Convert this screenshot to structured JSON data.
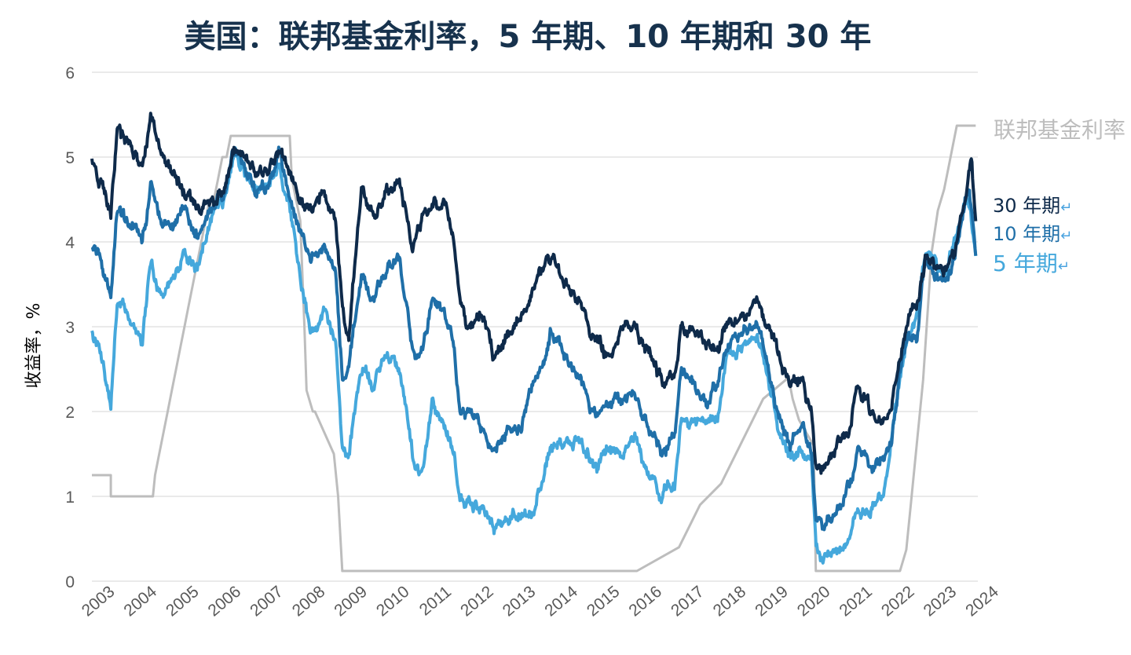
{
  "chart_data": {
    "type": "line",
    "title": "美国：联邦基金利率，5 年期、10 年期和 30 年",
    "ylabel": "收益率，%",
    "xlabel": "",
    "ylim": [
      0,
      6
    ],
    "yticks": [
      "0",
      "1",
      "2",
      "3",
      "4",
      "5",
      "6"
    ],
    "xticks": [
      "2003",
      "2004",
      "2005",
      "2006",
      "2007",
      "2008",
      "2009",
      "2010",
      "2011",
      "2012",
      "2013",
      "2014",
      "2015",
      "2016",
      "2017",
      "2018",
      "2019",
      "2020",
      "2021",
      "2022",
      "2023",
      "2024"
    ],
    "grid": true,
    "legend_placement": "right, at line ends",
    "colors": {
      "title": "#17324d",
      "fed": "#bdbdbd",
      "y30": "#0e2a4a",
      "y10": "#1f6fa8",
      "y5": "#45a8dc",
      "axis_text": "#595959",
      "return_mark": "#4aa3df"
    },
    "series": [
      {
        "name": "联邦基金利率",
        "x": [
          2003.0,
          2003.45,
          2003.45,
          2004.45,
          2004.5,
          2004.6,
          2004.7,
          2004.8,
          2004.9,
          2005.0,
          2005.1,
          2005.2,
          2005.3,
          2005.4,
          2005.5,
          2005.6,
          2005.7,
          2005.8,
          2005.9,
          2006.0,
          2006.1,
          2006.2,
          2006.3,
          2006.4,
          2006.5,
          2007.7,
          2007.75,
          2007.85,
          2007.95,
          2008.05,
          2008.1,
          2008.25,
          2008.3,
          2008.75,
          2008.85,
          2008.95,
          2015.95,
          2016.95,
          2017.2,
          2017.45,
          2017.95,
          2018.2,
          2018.45,
          2018.7,
          2018.95,
          2019.55,
          2019.65,
          2019.8,
          2020.15,
          2020.2,
          2022.2,
          2022.35,
          2022.45,
          2022.6,
          2022.75,
          2022.85,
          2022.95,
          2023.1,
          2023.25,
          2023.35,
          2023.55,
          2024.0
        ],
        "values": [
          1.25,
          1.25,
          1.0,
          1.0,
          1.25,
          1.5,
          1.75,
          2.0,
          2.25,
          2.5,
          2.75,
          3.0,
          3.25,
          3.5,
          3.75,
          4.0,
          4.25,
          4.5,
          4.5,
          4.75,
          5.0,
          5.0,
          5.25,
          5.25,
          5.25,
          5.25,
          4.75,
          4.5,
          4.25,
          3.0,
          2.25,
          2.0,
          2.0,
          1.5,
          1.0,
          0.12,
          0.12,
          0.4,
          0.65,
          0.9,
          1.15,
          1.4,
          1.65,
          1.9,
          2.15,
          2.4,
          2.15,
          1.9,
          1.6,
          0.12,
          0.12,
          0.37,
          0.87,
          1.62,
          2.37,
          3.12,
          3.87,
          4.37,
          4.62,
          4.87,
          5.37,
          5.37
        ]
      },
      {
        "name": "30 年期",
        "x": [
          2003.0,
          2003.2,
          2003.45,
          2003.6,
          2003.9,
          2004.2,
          2004.4,
          2004.6,
          2004.9,
          2005.2,
          2005.5,
          2005.8,
          2006.1,
          2006.4,
          2006.6,
          2006.9,
          2007.2,
          2007.45,
          2007.7,
          2007.9,
          2008.2,
          2008.5,
          2008.8,
          2008.95,
          2009.1,
          2009.4,
          2009.7,
          2010.0,
          2010.3,
          2010.6,
          2010.8,
          2011.1,
          2011.4,
          2011.6,
          2011.75,
          2011.9,
          2012.3,
          2012.55,
          2012.9,
          2013.2,
          2013.5,
          2013.9,
          2014.2,
          2014.6,
          2015.0,
          2015.3,
          2015.6,
          2015.9,
          2016.2,
          2016.55,
          2016.85,
          2017.0,
          2017.3,
          2017.6,
          2017.9,
          2018.1,
          2018.4,
          2018.8,
          2019.0,
          2019.3,
          2019.6,
          2019.9,
          2020.1,
          2020.2,
          2020.4,
          2020.7,
          2021.0,
          2021.2,
          2021.5,
          2021.8,
          2022.0,
          2022.2,
          2022.4,
          2022.6,
          2022.8,
          2023.0,
          2023.3,
          2023.5,
          2023.8,
          2023.9,
          2024.0
        ],
        "values": [
          5.0,
          4.7,
          4.3,
          5.3,
          5.1,
          4.8,
          5.5,
          5.2,
          4.8,
          4.6,
          4.4,
          4.5,
          4.6,
          5.2,
          5.0,
          4.8,
          4.8,
          5.1,
          4.8,
          4.6,
          4.4,
          4.6,
          4.2,
          3.2,
          2.8,
          4.6,
          4.3,
          4.6,
          4.7,
          4.0,
          4.2,
          4.5,
          4.4,
          4.1,
          3.4,
          3.0,
          3.2,
          2.6,
          2.9,
          3.1,
          3.5,
          3.8,
          3.6,
          3.3,
          2.8,
          2.6,
          3.0,
          2.9,
          2.7,
          2.3,
          2.4,
          3.0,
          3.0,
          2.8,
          2.8,
          3.0,
          3.1,
          3.3,
          3.0,
          2.7,
          2.3,
          2.3,
          2.0,
          1.3,
          1.4,
          1.6,
          1.8,
          2.3,
          2.0,
          1.9,
          2.1,
          2.6,
          3.1,
          3.3,
          3.8,
          3.7,
          3.7,
          3.9,
          4.6,
          5.0,
          4.2
        ]
      },
      {
        "name": "10 年期",
        "x": [
          2003.0,
          2003.2,
          2003.45,
          2003.6,
          2003.9,
          2004.2,
          2004.4,
          2004.6,
          2004.9,
          2005.2,
          2005.5,
          2005.8,
          2006.1,
          2006.4,
          2006.6,
          2006.9,
          2007.2,
          2007.45,
          2007.7,
          2007.9,
          2008.2,
          2008.5,
          2008.8,
          2008.95,
          2009.1,
          2009.4,
          2009.7,
          2010.0,
          2010.3,
          2010.6,
          2010.8,
          2011.1,
          2011.4,
          2011.6,
          2011.75,
          2011.9,
          2012.3,
          2012.55,
          2012.9,
          2013.2,
          2013.5,
          2013.9,
          2014.2,
          2014.6,
          2015.0,
          2015.3,
          2015.6,
          2015.9,
          2016.2,
          2016.55,
          2016.85,
          2017.0,
          2017.3,
          2017.6,
          2017.9,
          2018.1,
          2018.4,
          2018.8,
          2019.0,
          2019.3,
          2019.6,
          2019.9,
          2020.1,
          2020.2,
          2020.4,
          2020.7,
          2021.0,
          2021.2,
          2021.5,
          2021.8,
          2022.0,
          2022.2,
          2022.4,
          2022.6,
          2022.8,
          2023.0,
          2023.3,
          2023.5,
          2023.8,
          2023.9,
          2024.0
        ],
        "values": [
          4.0,
          3.8,
          3.3,
          4.4,
          4.2,
          4.0,
          4.7,
          4.3,
          4.2,
          4.3,
          4.0,
          4.4,
          4.5,
          5.1,
          4.9,
          4.6,
          4.7,
          5.0,
          4.6,
          4.2,
          3.8,
          4.0,
          3.6,
          2.4,
          2.5,
          3.6,
          3.3,
          3.7,
          3.8,
          2.8,
          2.6,
          3.4,
          3.1,
          2.8,
          2.0,
          2.0,
          1.9,
          1.5,
          1.8,
          1.9,
          2.3,
          3.0,
          2.7,
          2.4,
          1.9,
          2.1,
          2.1,
          2.2,
          1.8,
          1.5,
          1.8,
          2.4,
          2.3,
          2.1,
          2.4,
          2.8,
          2.9,
          3.0,
          2.7,
          2.0,
          1.6,
          1.8,
          1.5,
          0.7,
          0.6,
          0.8,
          1.1,
          1.6,
          1.3,
          1.5,
          1.7,
          2.4,
          2.9,
          2.9,
          3.8,
          3.6,
          3.5,
          3.8,
          4.7,
          4.4,
          3.9
        ]
      },
      {
        "name": "5 年期",
        "x": [
          2003.0,
          2003.2,
          2003.45,
          2003.6,
          2003.9,
          2004.2,
          2004.4,
          2004.6,
          2004.9,
          2005.2,
          2005.5,
          2005.8,
          2006.1,
          2006.4,
          2006.6,
          2006.9,
          2007.2,
          2007.45,
          2007.7,
          2007.9,
          2008.2,
          2008.5,
          2008.8,
          2008.95,
          2009.1,
          2009.4,
          2009.7,
          2010.0,
          2010.3,
          2010.6,
          2010.8,
          2011.1,
          2011.4,
          2011.6,
          2011.75,
          2011.9,
          2012.3,
          2012.55,
          2012.9,
          2013.2,
          2013.5,
          2013.9,
          2014.2,
          2014.6,
          2015.0,
          2015.3,
          2015.6,
          2015.9,
          2016.2,
          2016.55,
          2016.85,
          2017.0,
          2017.3,
          2017.6,
          2017.9,
          2018.1,
          2018.4,
          2018.8,
          2019.0,
          2019.3,
          2019.6,
          2019.9,
          2020.1,
          2020.2,
          2020.4,
          2020.7,
          2021.0,
          2021.2,
          2021.5,
          2021.8,
          2022.0,
          2022.2,
          2022.4,
          2022.6,
          2022.8,
          2023.0,
          2023.3,
          2023.5,
          2023.8,
          2023.9,
          2024.0
        ],
        "values": [
          3.0,
          2.7,
          2.1,
          3.3,
          3.1,
          2.8,
          3.8,
          3.4,
          3.5,
          3.9,
          3.7,
          4.2,
          4.4,
          5.0,
          4.8,
          4.6,
          4.6,
          4.9,
          4.4,
          3.8,
          2.9,
          3.2,
          2.8,
          1.7,
          1.5,
          2.6,
          2.3,
          2.6,
          2.5,
          1.5,
          1.2,
          2.2,
          1.8,
          1.5,
          0.9,
          0.9,
          0.8,
          0.6,
          0.7,
          0.8,
          0.8,
          1.6,
          1.6,
          1.7,
          1.3,
          1.6,
          1.5,
          1.7,
          1.3,
          1.0,
          1.2,
          1.9,
          1.9,
          1.8,
          2.0,
          2.6,
          2.7,
          2.9,
          2.6,
          1.8,
          1.5,
          1.6,
          1.4,
          0.4,
          0.3,
          0.3,
          0.5,
          0.9,
          0.8,
          1.1,
          1.6,
          2.4,
          2.8,
          3.0,
          3.9,
          3.8,
          3.6,
          4.0,
          4.6,
          4.3,
          3.9
        ]
      }
    ]
  }
}
